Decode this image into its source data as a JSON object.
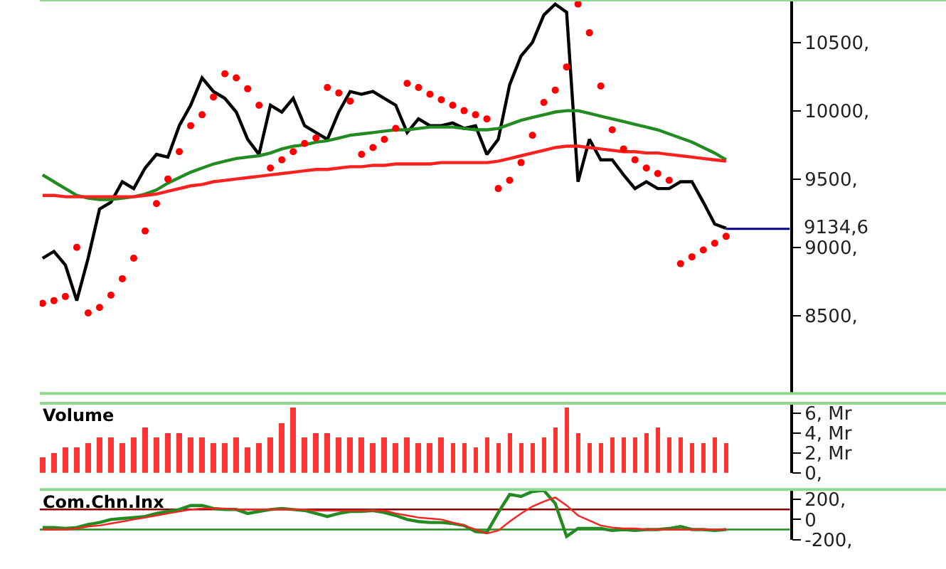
{
  "chart_data": [
    {
      "type": "line",
      "categories": [
        null,
        null,
        null,
        null,
        null,
        null,
        null,
        null,
        null,
        null,
        null,
        null,
        null,
        null,
        null,
        null,
        null,
        null,
        null,
        null,
        null,
        null,
        null,
        null,
        null,
        null,
        null,
        null,
        null,
        null,
        null,
        null,
        null,
        null,
        null,
        null,
        null,
        null,
        null,
        null,
        null,
        null,
        null,
        null,
        null,
        null,
        null,
        null,
        null,
        null,
        null,
        null,
        null,
        null,
        null,
        null,
        null,
        null,
        null,
        null,
        null
      ],
      "series": [
        {
          "color": "#000000",
          "values": [
            8920,
            8970,
            8870,
            8610,
            8920,
            9280,
            9330,
            9480,
            9430,
            9580,
            9680,
            9660,
            9890,
            10040,
            10240,
            10140,
            10090,
            9990,
            9790,
            9680,
            10040,
            9990,
            10090,
            9890,
            9840,
            9790,
            9990,
            10140,
            10120,
            10140,
            10090,
            10040,
            9840,
            9940,
            9890,
            9890,
            9910,
            9870,
            9890,
            9680,
            9790,
            10190,
            10400,
            10500,
            10700,
            10780,
            10720,
            9480,
            9790,
            9640,
            9640,
            9530,
            9430,
            9480,
            9430,
            9430,
            9480,
            9480,
            9330,
            9170,
            9140
          ]
        },
        {
          "color": "#228b22",
          "values": [
            9530,
            9480,
            9430,
            9380,
            9360,
            9350,
            9350,
            9360,
            9370,
            9390,
            9420,
            9470,
            9510,
            9550,
            9580,
            9610,
            9630,
            9650,
            9660,
            9670,
            9690,
            9720,
            9740,
            9750,
            9770,
            9780,
            9800,
            9820,
            9830,
            9840,
            9850,
            9860,
            9860,
            9870,
            9880,
            9880,
            9880,
            9870,
            9860,
            9860,
            9870,
            9900,
            9930,
            9950,
            9970,
            9990,
            10000,
            10000,
            9980,
            9960,
            9940,
            9920,
            9900,
            9880,
            9860,
            9830,
            9800,
            9770,
            9730,
            9690,
            9640
          ]
        },
        {
          "color": "#ff2020",
          "values": [
            9380,
            9380,
            9370,
            9370,
            9370,
            9370,
            9370,
            9370,
            9370,
            9380,
            9390,
            9410,
            9430,
            9450,
            9460,
            9480,
            9490,
            9500,
            9510,
            9520,
            9530,
            9540,
            9550,
            9560,
            9570,
            9570,
            9580,
            9590,
            9590,
            9600,
            9600,
            9610,
            9610,
            9610,
            9610,
            9620,
            9620,
            9620,
            9620,
            9620,
            9630,
            9650,
            9670,
            9690,
            9710,
            9730,
            9740,
            9740,
            9730,
            9720,
            9710,
            9700,
            9700,
            9690,
            9690,
            9680,
            9670,
            9660,
            9650,
            9640,
            9630
          ]
        },
        {
          "type": "scatter",
          "marker": "circle",
          "color": "#ff0000",
          "values": [
            8590,
            8610,
            8640,
            9000,
            8520,
            8560,
            8650,
            8770,
            8920,
            9120,
            9320,
            9500,
            9700,
            9890,
            9970,
            10100,
            10270,
            10240,
            10160,
            10040,
            9580,
            9640,
            9700,
            9760,
            9800,
            10170,
            10130,
            10070,
            9680,
            9730,
            9790,
            9870,
            10200,
            10170,
            10120,
            10080,
            10040,
            10000,
            9970,
            9940,
            9430,
            9490,
            9620,
            9820,
            10060,
            10150,
            10320,
            10780,
            10570,
            10180,
            9860,
            9720,
            9640,
            9580,
            9540,
            9490,
            8880,
            8930,
            8980,
            9030,
            9080
          ]
        }
      ],
      "ylim": [
        7930,
        10810
      ],
      "yticks": [
        {
          "value": 8500,
          "label": "8500,"
        },
        {
          "value": 9000,
          "label": "9000,"
        },
        {
          "value": 9500,
          "label": "9500,"
        },
        {
          "value": 10000,
          "label": "10000,"
        },
        {
          "value": 10500,
          "label": "10500,"
        }
      ],
      "ref_lines": [
        {
          "axis": "y",
          "value": 9134.6,
          "label": "9134,6",
          "color": "#000080"
        }
      ],
      "tick_labels": "y"
    },
    {
      "type": "bar",
      "title": "Volume",
      "categories": [
        null,
        null,
        null,
        null,
        null,
        null,
        null,
        null,
        null,
        null,
        null,
        null,
        null,
        null,
        null,
        null,
        null,
        null,
        null,
        null,
        null,
        null,
        null,
        null,
        null,
        null,
        null,
        null,
        null,
        null,
        null,
        null,
        null,
        null,
        null,
        null,
        null,
        null,
        null,
        null,
        null,
        null,
        null,
        null,
        null,
        null,
        null,
        null,
        null,
        null,
        null,
        null,
        null,
        null,
        null,
        null,
        null,
        null,
        null,
        null,
        null
      ],
      "series": [
        {
          "color": "#ff3333",
          "values": [
            1.5,
            2.0,
            2.5,
            2.5,
            3.0,
            3.5,
            3.5,
            3.0,
            3.5,
            4.5,
            3.5,
            4.0,
            4.0,
            3.5,
            3.5,
            3.0,
            3.0,
            3.5,
            2.5,
            3.0,
            3.5,
            5.0,
            6.5,
            3.5,
            4.0,
            4.0,
            3.5,
            3.5,
            3.5,
            3.0,
            3.5,
            3.0,
            3.5,
            3.0,
            3.0,
            3.5,
            3.0,
            3.0,
            2.5,
            3.5,
            3.0,
            4.0,
            3.0,
            3.0,
            3.5,
            4.5,
            6.5,
            4.0,
            3.0,
            3.0,
            3.5,
            3.5,
            3.5,
            4.0,
            4.5,
            3.5,
            3.5,
            3.0,
            3.0,
            3.5,
            3.0
          ]
        }
      ],
      "ylim": [
        0,
        7
      ],
      "yticks": [
        {
          "value": 0,
          "label": "0,"
        },
        {
          "value": 2,
          "label": "2, Mr"
        },
        {
          "value": 4,
          "label": "4, Mr"
        },
        {
          "value": 6,
          "label": "6, Mr"
        }
      ],
      "tick_labels": "y"
    },
    {
      "type": "line",
      "title": "Com.Chn.Inx",
      "categories": [
        null,
        null,
        null,
        null,
        null,
        null,
        null,
        null,
        null,
        null,
        null,
        null,
        null,
        null,
        null,
        null,
        null,
        null,
        null,
        null,
        null,
        null,
        null,
        null,
        null,
        null,
        null,
        null,
        null,
        null,
        null,
        null,
        null,
        null,
        null,
        null,
        null,
        null,
        null,
        null,
        null,
        null,
        null,
        null,
        null,
        null,
        null,
        null,
        null,
        null,
        null,
        null,
        null,
        null,
        null,
        null,
        null,
        null,
        null,
        null,
        null
      ],
      "series": [
        {
          "color": "#228b22",
          "values": [
            -80,
            -80,
            -90,
            -80,
            -50,
            -30,
            0,
            10,
            20,
            30,
            60,
            80,
            100,
            140,
            140,
            110,
            100,
            100,
            60,
            80,
            100,
            110,
            100,
            90,
            60,
            30,
            60,
            80,
            80,
            90,
            70,
            40,
            0,
            -20,
            -30,
            -30,
            -40,
            -60,
            -120,
            -130,
            70,
            250,
            230,
            280,
            290,
            160,
            -170,
            -90,
            -90,
            -90,
            -110,
            -100,
            -110,
            -100,
            -100,
            -90,
            -70,
            -100,
            -100,
            -110,
            -100
          ]
        },
        {
          "color": "#ff2020",
          "values": [
            -100,
            -100,
            -100,
            -90,
            -70,
            -60,
            -40,
            -20,
            0,
            20,
            40,
            60,
            80,
            100,
            110,
            110,
            110,
            100,
            100,
            100,
            100,
            100,
            100,
            100,
            90,
            90,
            90,
            90,
            90,
            90,
            90,
            60,
            40,
            20,
            10,
            0,
            -30,
            -60,
            -100,
            -140,
            -110,
            -20,
            60,
            130,
            180,
            220,
            140,
            40,
            -10,
            -60,
            -80,
            -90,
            -90,
            -100,
            -100,
            -100,
            -100,
            -100,
            -100,
            -100,
            -100
          ]
        }
      ],
      "ylim": [
        -200,
        300
      ],
      "yticks": [
        {
          "value": -200,
          "label": "-200,"
        },
        {
          "value": 0,
          "label": "0"
        },
        {
          "value": 200,
          "label": "200,"
        }
      ],
      "ref_lines": [
        {
          "axis": "y",
          "value": 100,
          "color": "#8b0000"
        },
        {
          "axis": "y",
          "value": -100,
          "color": "#228b22"
        }
      ],
      "tick_labels": "y"
    }
  ]
}
